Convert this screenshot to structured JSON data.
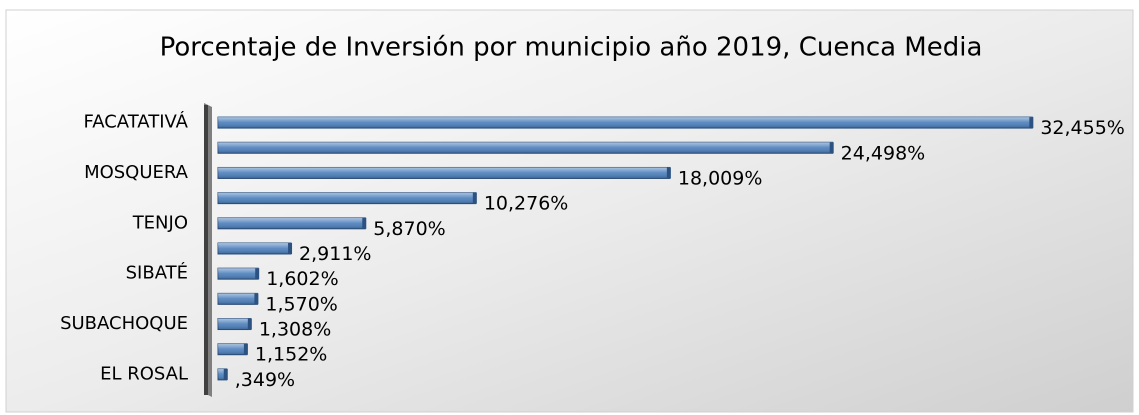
{
  "chart_data": {
    "type": "bar",
    "orientation": "horizontal",
    "title": "Porcentaje de Inversión por municipio año 2019, Cuenca Media",
    "categories": [
      "FACATATIVÁ",
      null,
      "MOSQUERA",
      null,
      "TENJO",
      null,
      "SIBATÉ",
      null,
      "SUBACHOQUE",
      null,
      "EL ROSAL"
    ],
    "values": [
      32.455,
      24.498,
      18.009,
      10.276,
      5.87,
      2.911,
      1.602,
      1.57,
      1.308,
      1.152,
      0.349
    ],
    "value_labels": [
      "32,455%",
      "24,498%",
      "18,009%",
      "10,276%",
      "5,870%",
      "2,911%",
      "1,602%",
      "1,570%",
      "1,308%",
      "1,152%",
      ",349%"
    ],
    "color": "#4a7ebb",
    "xlim": [
      0,
      33
    ]
  }
}
